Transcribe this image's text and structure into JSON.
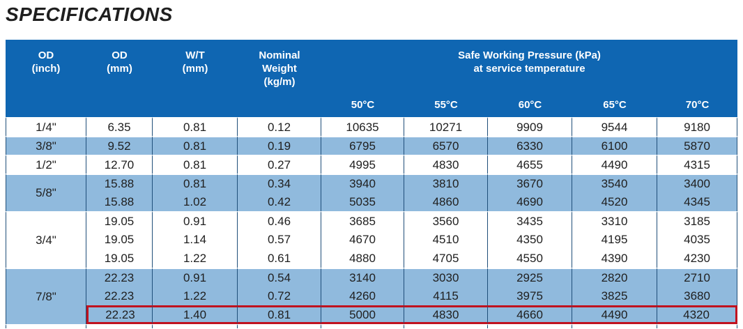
{
  "title": "SPECIFICATIONS",
  "colors": {
    "header_blue": "#0f66b2",
    "stripe_blue": "#90badd",
    "column_rule_navy": "#1f4e79",
    "highlight_red": "#c0121f",
    "text_dark": "#202020"
  },
  "table": {
    "col_headers": [
      {
        "lines": [
          "OD",
          "(inch)"
        ]
      },
      {
        "lines": [
          "OD",
          "(mm)"
        ]
      },
      {
        "lines": [
          "W/T",
          "(mm)"
        ]
      },
      {
        "lines": [
          "Nominal",
          "Weight",
          "(kg/m)"
        ]
      }
    ],
    "swp_header": {
      "lines": [
        "Safe Working Pressure (kPa)",
        "at service temperature"
      ]
    },
    "temp_headers": [
      "50°C",
      "55°C",
      "60°C",
      "65°C",
      "70°C"
    ],
    "groups": [
      {
        "od_inch": "1/4\"",
        "shade": "white",
        "rows": [
          {
            "highlight": false,
            "cells": [
              "6.35",
              "0.81",
              "0.12",
              "10635",
              "10271",
              "9909",
              "9544",
              "9180"
            ]
          }
        ]
      },
      {
        "od_inch": "3/8\"",
        "shade": "blue",
        "rows": [
          {
            "highlight": false,
            "cells": [
              "9.52",
              "0.81",
              "0.19",
              "6795",
              "6570",
              "6330",
              "6100",
              "5870"
            ]
          }
        ]
      },
      {
        "od_inch": "1/2\"",
        "shade": "white",
        "rows": [
          {
            "highlight": false,
            "cells": [
              "12.70",
              "0.81",
              "0.27",
              "4995",
              "4830",
              "4655",
              "4490",
              "4315"
            ]
          }
        ]
      },
      {
        "od_inch": "5/8\"",
        "shade": "blue",
        "rows": [
          {
            "highlight": false,
            "cells": [
              "15.88",
              "0.81",
              "0.34",
              "3940",
              "3810",
              "3670",
              "3540",
              "3400"
            ]
          },
          {
            "highlight": false,
            "cells": [
              "15.88",
              "1.02",
              "0.42",
              "5035",
              "4860",
              "4690",
              "4520",
              "4345"
            ]
          }
        ]
      },
      {
        "od_inch": "3/4\"",
        "shade": "white",
        "rows": [
          {
            "highlight": false,
            "cells": [
              "19.05",
              "0.91",
              "0.46",
              "3685",
              "3560",
              "3435",
              "3310",
              "3185"
            ]
          },
          {
            "highlight": false,
            "cells": [
              "19.05",
              "1.14",
              "0.57",
              "4670",
              "4510",
              "4350",
              "4195",
              "4035"
            ]
          },
          {
            "highlight": false,
            "cells": [
              "19.05",
              "1.22",
              "0.61",
              "4880",
              "4705",
              "4550",
              "4390",
              "4230"
            ]
          }
        ]
      },
      {
        "od_inch": "7/8\"",
        "shade": "blue",
        "rows": [
          {
            "highlight": false,
            "cells": [
              "22.23",
              "0.91",
              "0.54",
              "3140",
              "3030",
              "2925",
              "2820",
              "2710"
            ]
          },
          {
            "highlight": false,
            "cells": [
              "22.23",
              "1.22",
              "0.72",
              "4260",
              "4115",
              "3975",
              "3825",
              "3680"
            ]
          },
          {
            "highlight": true,
            "cells": [
              "22.23",
              "1.40",
              "0.81",
              "5000",
              "4830",
              "4660",
              "4490",
              "4320"
            ]
          }
        ]
      }
    ]
  }
}
